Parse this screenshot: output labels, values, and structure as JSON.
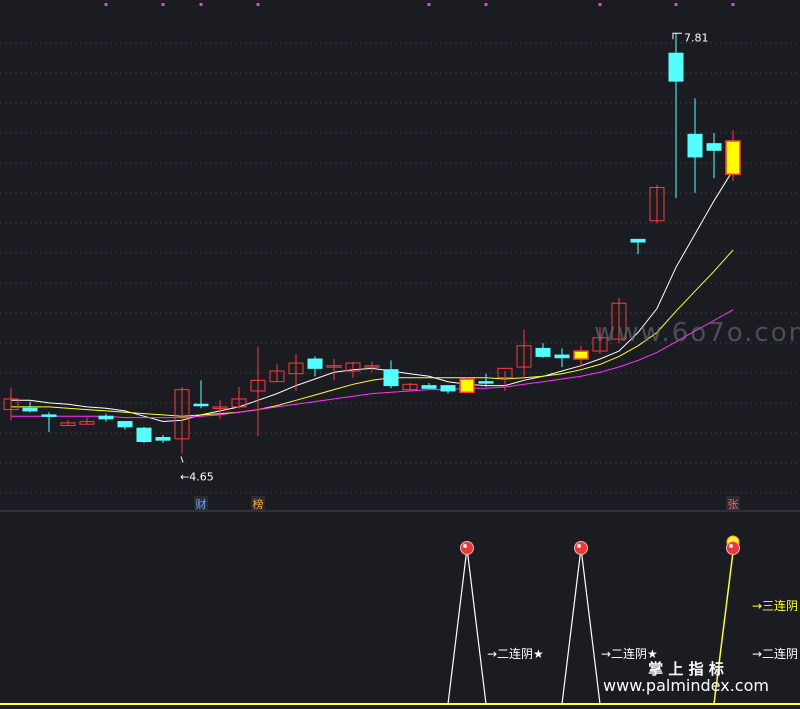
{
  "chart_data": {
    "type": "candlestick",
    "price_axis": {
      "ylim": [
        4.3,
        8.0
      ]
    },
    "candles": [
      {
        "o": 4.98,
        "h": 5.14,
        "l": 4.9,
        "c": 5.06
      },
      {
        "o": 4.99,
        "h": 5.04,
        "l": 4.96,
        "c": 4.97
      },
      {
        "o": 4.94,
        "h": 4.96,
        "l": 4.81,
        "c": 4.93
      },
      {
        "o": 4.86,
        "h": 4.9,
        "l": 4.86,
        "c": 4.88
      },
      {
        "o": 4.87,
        "h": 4.92,
        "l": 4.87,
        "c": 4.89
      },
      {
        "o": 4.93,
        "h": 4.95,
        "l": 4.89,
        "c": 4.91
      },
      {
        "o": 4.89,
        "h": 4.89,
        "l": 4.83,
        "c": 4.85
      },
      {
        "o": 4.84,
        "h": 4.85,
        "l": 4.73,
        "c": 4.74
      },
      {
        "o": 4.77,
        "h": 4.79,
        "l": 4.73,
        "c": 4.75
      },
      {
        "o": 4.76,
        "h": 5.15,
        "l": 4.65,
        "c": 5.13
      },
      {
        "o": 5.02,
        "h": 5.2,
        "l": 4.99,
        "c": 5.01
      },
      {
        "o": 4.99,
        "h": 5.05,
        "l": 4.91,
        "c": 5.0
      },
      {
        "o": 5.0,
        "h": 5.15,
        "l": 4.99,
        "c": 5.06
      },
      {
        "o": 5.12,
        "h": 5.45,
        "l": 4.78,
        "c": 5.2
      },
      {
        "o": 5.19,
        "h": 5.32,
        "l": 5.19,
        "c": 5.27
      },
      {
        "o": 5.25,
        "h": 5.4,
        "l": 5.12,
        "c": 5.33
      },
      {
        "o": 5.36,
        "h": 5.38,
        "l": 5.23,
        "c": 5.29
      },
      {
        "o": 5.3,
        "h": 5.36,
        "l": 5.2,
        "c": 5.31
      },
      {
        "o": 5.27,
        "h": 5.34,
        "l": 5.22,
        "c": 5.33
      },
      {
        "o": 5.31,
        "h": 5.34,
        "l": 5.26,
        "c": 5.31
      },
      {
        "o": 5.28,
        "h": 5.35,
        "l": 5.14,
        "c": 5.16
      },
      {
        "o": 5.13,
        "h": 5.18,
        "l": 5.12,
        "c": 5.17
      },
      {
        "o": 5.16,
        "h": 5.18,
        "l": 5.14,
        "c": 5.14
      },
      {
        "o": 5.16,
        "h": 5.16,
        "l": 5.1,
        "c": 5.12
      },
      {
        "o": 5.11,
        "h": 5.22,
        "l": 5.11,
        "c": 5.21
      },
      {
        "o": 5.19,
        "h": 5.25,
        "l": 5.15,
        "c": 5.18
      },
      {
        "o": 5.22,
        "h": 5.27,
        "l": 5.12,
        "c": 5.29
      },
      {
        "o": 5.3,
        "h": 5.58,
        "l": 5.2,
        "c": 5.46
      },
      {
        "o": 5.44,
        "h": 5.48,
        "l": 5.37,
        "c": 5.38
      },
      {
        "o": 5.39,
        "h": 5.44,
        "l": 5.3,
        "c": 5.37
      },
      {
        "o": 5.36,
        "h": 5.46,
        "l": 5.3,
        "c": 5.42
      },
      {
        "o": 5.42,
        "h": 5.6,
        "l": 5.4,
        "c": 5.52
      },
      {
        "o": 5.51,
        "h": 5.82,
        "l": 5.48,
        "c": 5.78
      },
      {
        "o": 6.26,
        "h": 6.26,
        "l": 6.15,
        "c": 6.24
      },
      {
        "o": 6.4,
        "h": 6.67,
        "l": 6.38,
        "c": 6.65
      },
      {
        "o": 7.66,
        "h": 7.81,
        "l": 6.57,
        "c": 7.45
      },
      {
        "o": 7.05,
        "h": 7.32,
        "l": 6.61,
        "c": 6.88
      },
      {
        "o": 6.98,
        "h": 7.06,
        "l": 6.72,
        "c": 6.93
      },
      {
        "o": 6.75,
        "h": 7.08,
        "l": 6.7,
        "c": 7.0
      }
    ],
    "doji_special_idx": [
      24,
      30,
      38
    ],
    "ma_lines": [
      {
        "name": "ma-white",
        "color": "#ffffff",
        "values": [
          5.05,
          5.05,
          5.03,
          5.02,
          5.0,
          4.99,
          4.97,
          4.93,
          4.89,
          4.9,
          4.94,
          4.97,
          5.0,
          5.05,
          5.1,
          5.16,
          5.21,
          5.26,
          5.28,
          5.29,
          5.27,
          5.25,
          5.23,
          5.19,
          5.17,
          5.16,
          5.16,
          5.2,
          5.23,
          5.27,
          5.31,
          5.36,
          5.42,
          5.56,
          5.74,
          6.05,
          6.3,
          6.55,
          6.78
        ]
      },
      {
        "name": "ma-yellow",
        "color": "#ffff33",
        "values": [
          5.0,
          5.0,
          5.0,
          4.99,
          4.98,
          4.97,
          4.96,
          4.95,
          4.94,
          4.93,
          4.94,
          4.95,
          4.96,
          4.98,
          5.01,
          5.05,
          5.09,
          5.13,
          5.17,
          5.2,
          5.22,
          5.22,
          5.22,
          5.22,
          5.22,
          5.22,
          5.21,
          5.22,
          5.23,
          5.25,
          5.28,
          5.32,
          5.38,
          5.46,
          5.56,
          5.72,
          5.87,
          6.02,
          6.18
        ]
      },
      {
        "name": "ma-magenta",
        "color": "#ff33ff",
        "values": [
          4.93,
          4.93,
          4.93,
          4.93,
          4.93,
          4.93,
          4.92,
          4.92,
          4.92,
          4.92,
          4.93,
          4.94,
          4.96,
          4.98,
          5.0,
          5.02,
          5.04,
          5.06,
          5.08,
          5.1,
          5.11,
          5.12,
          5.13,
          5.13,
          5.14,
          5.14,
          5.15,
          5.17,
          5.19,
          5.21,
          5.23,
          5.26,
          5.3,
          5.35,
          5.41,
          5.49,
          5.57,
          5.65,
          5.73
        ]
      }
    ],
    "annotations": {
      "high": {
        "text": "7.81",
        "idx": 35
      },
      "low": {
        "text": "4.65",
        "idx": 9
      }
    },
    "event_markers": [
      {
        "text": "财",
        "idx": 10,
        "color": "#6fa8ff"
      },
      {
        "text": "榜",
        "idx": 13,
        "color": "#ffaa33"
      },
      {
        "text": "张",
        "idx": 38,
        "color": "#ff6666"
      }
    ],
    "top_dots_idx": [
      5,
      8,
      10,
      13,
      22,
      25,
      31,
      35,
      38
    ],
    "indicator": {
      "spikes": [
        {
          "idx": 24,
          "label": "→二连阴★"
        },
        {
          "idx": 30,
          "label": "→二连阴★"
        }
      ],
      "final_spike": {
        "idx": 38,
        "labels": [
          "→三连阴",
          "→二连阴"
        ]
      }
    }
  },
  "watermarks": {
    "url_mid": "www.6o7o.com",
    "title_bottom": "掌 上 指 标",
    "url_bottom": "www.palmindex.com"
  }
}
